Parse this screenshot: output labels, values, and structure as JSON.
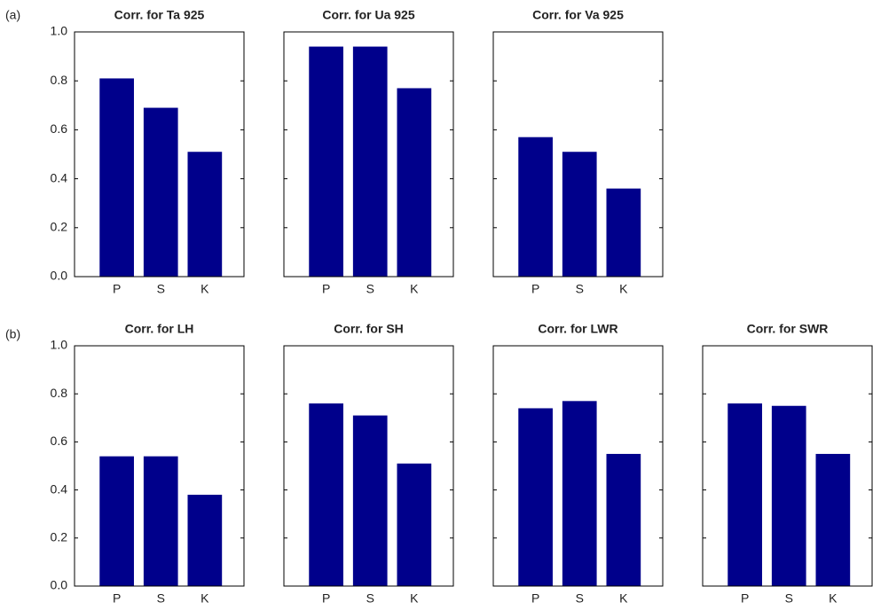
{
  "panel_labels": [
    "(a)",
    "(b)"
  ],
  "chart_data": [
    {
      "type": "bar",
      "title": "Corr. for Ta 925",
      "categories": [
        "P",
        "S",
        "K"
      ],
      "values": [
        0.81,
        0.69,
        0.51
      ],
      "color": "#00008b",
      "ylim": [
        0,
        1
      ],
      "yticks": [
        {
          "value": 0,
          "label": "0.0"
        },
        {
          "value": 0.2,
          "label": "0.2"
        },
        {
          "value": 0.4,
          "label": "0.4"
        },
        {
          "value": 0.6,
          "label": "0.6"
        },
        {
          "value": 0.8,
          "label": "0.8"
        },
        {
          "value": 1,
          "label": "1.0"
        }
      ]
    },
    {
      "type": "bar",
      "title": "Corr. for Ua 925",
      "categories": [
        "P",
        "S",
        "K"
      ],
      "values": [
        0.94,
        0.94,
        0.77
      ],
      "color": "#00008b",
      "ylim": [
        0,
        1
      ],
      "yticks": [
        0,
        0.2,
        0.4,
        0.6,
        0.8,
        1
      ]
    },
    {
      "type": "bar",
      "title": "Corr. for Va 925",
      "categories": [
        "P",
        "S",
        "K"
      ],
      "values": [
        0.57,
        0.51,
        0.36
      ],
      "color": "#00008b",
      "ylim": [
        0,
        1
      ],
      "yticks": [
        0,
        0.2,
        0.4,
        0.6,
        0.8,
        1
      ]
    },
    {
      "type": "bar",
      "title": "Corr. for LH",
      "categories": [
        "P",
        "S",
        "K"
      ],
      "values": [
        0.54,
        0.54,
        0.38
      ],
      "color": "#00008b",
      "ylim": [
        0,
        1
      ],
      "yticks": [
        {
          "value": 0,
          "label": "0.0"
        },
        {
          "value": 0.2,
          "label": "0.2"
        },
        {
          "value": 0.4,
          "label": "0.4"
        },
        {
          "value": 0.6,
          "label": "0.6"
        },
        {
          "value": 0.8,
          "label": "0.8"
        },
        {
          "value": 1,
          "label": "1.0"
        }
      ]
    },
    {
      "type": "bar",
      "title": "Corr. for SH",
      "categories": [
        "P",
        "S",
        "K"
      ],
      "values": [
        0.76,
        0.71,
        0.51
      ],
      "color": "#00008b",
      "ylim": [
        0,
        1
      ],
      "yticks": [
        0,
        0.2,
        0.4,
        0.6,
        0.8,
        1
      ]
    },
    {
      "type": "bar",
      "title": "Corr. for LWR",
      "categories": [
        "P",
        "S",
        "K"
      ],
      "values": [
        0.74,
        0.77,
        0.55
      ],
      "color": "#00008b",
      "ylim": [
        0,
        1
      ],
      "yticks": [
        0,
        0.2,
        0.4,
        0.6,
        0.8,
        1
      ]
    },
    {
      "type": "bar",
      "title": "Corr. for SWR",
      "categories": [
        "P",
        "S",
        "K"
      ],
      "values": [
        0.76,
        0.75,
        0.55
      ],
      "color": "#00008b",
      "ylim": [
        0,
        1
      ],
      "yticks": [
        0,
        0.2,
        0.4,
        0.6,
        0.8,
        1
      ]
    }
  ]
}
